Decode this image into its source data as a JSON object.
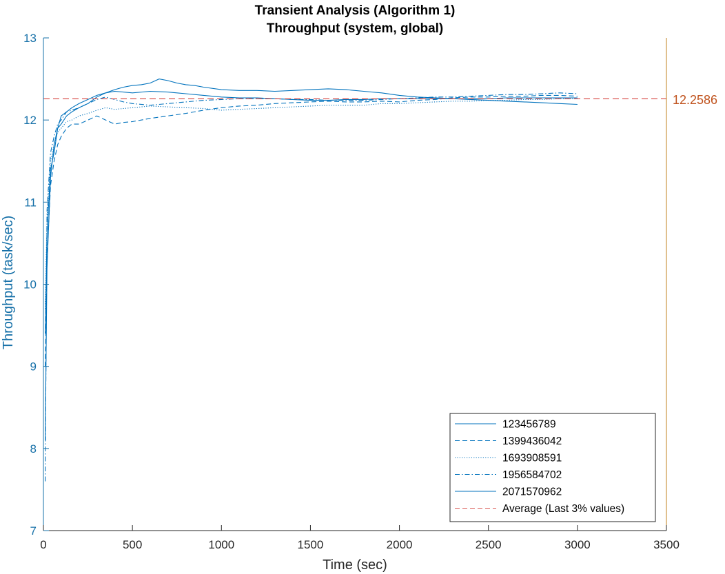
{
  "chart_data": {
    "type": "line",
    "title": "Transient Analysis (Algorithm 1)",
    "subtitle": "Throughput (system, global)",
    "xlabel": "Time (sec)",
    "ylabel": "Throughput (task/sec)",
    "xlim": [
      0,
      3500
    ],
    "ylim": [
      7,
      13
    ],
    "x_ticks": [
      0,
      500,
      1000,
      1500,
      2000,
      2500,
      3000,
      3500
    ],
    "y_ticks": [
      7,
      8,
      9,
      10,
      11,
      12,
      13
    ],
    "grid": false,
    "legend_position": "bottom-right",
    "series": [
      {
        "name": "123456789",
        "line_style": "solid",
        "color": "#0072BD",
        "points": [
          [
            10,
            9.4
          ],
          [
            20,
            10.6
          ],
          [
            40,
            11.4
          ],
          [
            60,
            11.6
          ],
          [
            80,
            11.9
          ],
          [
            100,
            11.95
          ],
          [
            130,
            12.05
          ],
          [
            160,
            12.1
          ],
          [
            200,
            12.15
          ],
          [
            250,
            12.2
          ],
          [
            300,
            12.28
          ],
          [
            350,
            12.33
          ],
          [
            400,
            12.37
          ],
          [
            450,
            12.4
          ],
          [
            500,
            12.42
          ],
          [
            550,
            12.43
          ],
          [
            600,
            12.45
          ],
          [
            650,
            12.5
          ],
          [
            700,
            12.48
          ],
          [
            750,
            12.45
          ],
          [
            800,
            12.43
          ],
          [
            850,
            12.42
          ],
          [
            900,
            12.4
          ],
          [
            1000,
            12.37
          ],
          [
            1100,
            12.36
          ],
          [
            1200,
            12.36
          ],
          [
            1300,
            12.35
          ],
          [
            1400,
            12.36
          ],
          [
            1500,
            12.37
          ],
          [
            1600,
            12.38
          ],
          [
            1700,
            12.37
          ],
          [
            1800,
            12.35
          ],
          [
            1900,
            12.33
          ],
          [
            2000,
            12.3
          ],
          [
            2100,
            12.28
          ],
          [
            2200,
            12.27
          ],
          [
            2300,
            12.26
          ],
          [
            2400,
            12.25
          ],
          [
            2500,
            12.24
          ],
          [
            2600,
            12.23
          ],
          [
            2700,
            12.22
          ],
          [
            2800,
            12.21
          ],
          [
            2900,
            12.2
          ],
          [
            3000,
            12.19
          ]
        ]
      },
      {
        "name": "1399436042",
        "line_style": "dashed",
        "color": "#0072BD",
        "points": [
          [
            10,
            9.0
          ],
          [
            20,
            10.3
          ],
          [
            40,
            11.2
          ],
          [
            60,
            11.5
          ],
          [
            80,
            11.7
          ],
          [
            100,
            11.8
          ],
          [
            130,
            11.9
          ],
          [
            160,
            11.95
          ],
          [
            200,
            11.95
          ],
          [
            250,
            12.0
          ],
          [
            300,
            12.05
          ],
          [
            350,
            12.0
          ],
          [
            400,
            11.95
          ],
          [
            450,
            11.97
          ],
          [
            500,
            11.98
          ],
          [
            600,
            12.02
          ],
          [
            700,
            12.05
          ],
          [
            800,
            12.08
          ],
          [
            900,
            12.12
          ],
          [
            1000,
            12.15
          ],
          [
            1100,
            12.17
          ],
          [
            1200,
            12.18
          ],
          [
            1300,
            12.2
          ],
          [
            1400,
            12.21
          ],
          [
            1500,
            12.22
          ],
          [
            1600,
            12.23
          ],
          [
            1700,
            12.22
          ],
          [
            1800,
            12.22
          ],
          [
            1900,
            12.23
          ],
          [
            2000,
            12.22
          ],
          [
            2100,
            12.24
          ],
          [
            2200,
            12.25
          ],
          [
            2300,
            12.27
          ],
          [
            2400,
            12.28
          ],
          [
            2500,
            12.28
          ],
          [
            2600,
            12.29
          ],
          [
            2700,
            12.29
          ],
          [
            2800,
            12.3
          ],
          [
            2900,
            12.3
          ],
          [
            3000,
            12.29
          ]
        ]
      },
      {
        "name": "1693908591",
        "line_style": "dotted",
        "color": "#0072BD",
        "points": [
          [
            10,
            9.7
          ],
          [
            20,
            10.8
          ],
          [
            40,
            11.5
          ],
          [
            60,
            11.7
          ],
          [
            80,
            11.85
          ],
          [
            100,
            11.9
          ],
          [
            130,
            11.98
          ],
          [
            160,
            12.0
          ],
          [
            200,
            12.05
          ],
          [
            250,
            12.08
          ],
          [
            300,
            12.12
          ],
          [
            350,
            12.15
          ],
          [
            400,
            12.13
          ],
          [
            450,
            12.14
          ],
          [
            500,
            12.15
          ],
          [
            600,
            12.17
          ],
          [
            700,
            12.16
          ],
          [
            800,
            12.15
          ],
          [
            900,
            12.14
          ],
          [
            1000,
            12.12
          ],
          [
            1100,
            12.13
          ],
          [
            1200,
            12.14
          ],
          [
            1300,
            12.15
          ],
          [
            1400,
            12.16
          ],
          [
            1500,
            12.17
          ],
          [
            1600,
            12.18
          ],
          [
            1700,
            12.18
          ],
          [
            1800,
            12.18
          ],
          [
            1900,
            12.2
          ],
          [
            2000,
            12.2
          ],
          [
            2100,
            12.21
          ],
          [
            2200,
            12.22
          ],
          [
            2300,
            12.23
          ],
          [
            2400,
            12.23
          ],
          [
            2500,
            12.24
          ],
          [
            2600,
            12.24
          ],
          [
            2700,
            12.25
          ],
          [
            2800,
            12.25
          ],
          [
            2900,
            12.26
          ],
          [
            3000,
            12.26
          ]
        ]
      },
      {
        "name": "1956584702",
        "line_style": "dash-dot",
        "color": "#0072BD",
        "points": [
          [
            10,
            7.6
          ],
          [
            20,
            10.9
          ],
          [
            40,
            11.6
          ],
          [
            60,
            11.8
          ],
          [
            80,
            11.95
          ],
          [
            100,
            12.0
          ],
          [
            130,
            12.1
          ],
          [
            160,
            12.12
          ],
          [
            200,
            12.15
          ],
          [
            250,
            12.2
          ],
          [
            300,
            12.25
          ],
          [
            350,
            12.28
          ],
          [
            400,
            12.25
          ],
          [
            450,
            12.22
          ],
          [
            500,
            12.2
          ],
          [
            600,
            12.18
          ],
          [
            700,
            12.2
          ],
          [
            800,
            12.22
          ],
          [
            900,
            12.24
          ],
          [
            1000,
            12.25
          ],
          [
            1100,
            12.26
          ],
          [
            1200,
            12.26
          ],
          [
            1300,
            12.26
          ],
          [
            1400,
            12.25
          ],
          [
            1500,
            12.25
          ],
          [
            1600,
            12.24
          ],
          [
            1700,
            12.24
          ],
          [
            1800,
            12.24
          ],
          [
            1900,
            12.25
          ],
          [
            2000,
            12.26
          ],
          [
            2100,
            12.27
          ],
          [
            2200,
            12.28
          ],
          [
            2300,
            12.28
          ],
          [
            2400,
            12.29
          ],
          [
            2500,
            12.3
          ],
          [
            2600,
            12.31
          ],
          [
            2700,
            12.31
          ],
          [
            2800,
            12.32
          ],
          [
            2900,
            12.33
          ],
          [
            3000,
            12.32
          ]
        ]
      },
      {
        "name": "2071570962",
        "line_style": "solid",
        "color": "#0072BD",
        "points": [
          [
            10,
            8.1
          ],
          [
            20,
            10.2
          ],
          [
            40,
            11.3
          ],
          [
            60,
            11.7
          ],
          [
            80,
            11.9
          ],
          [
            100,
            12.05
          ],
          [
            130,
            12.1
          ],
          [
            160,
            12.15
          ],
          [
            200,
            12.2
          ],
          [
            250,
            12.25
          ],
          [
            300,
            12.3
          ],
          [
            350,
            12.33
          ],
          [
            400,
            12.35
          ],
          [
            450,
            12.34
          ],
          [
            500,
            12.33
          ],
          [
            600,
            12.35
          ],
          [
            700,
            12.34
          ],
          [
            800,
            12.32
          ],
          [
            900,
            12.3
          ],
          [
            1000,
            12.28
          ],
          [
            1100,
            12.27
          ],
          [
            1200,
            12.27
          ],
          [
            1300,
            12.26
          ],
          [
            1400,
            12.25
          ],
          [
            1500,
            12.24
          ],
          [
            1600,
            12.24
          ],
          [
            1700,
            12.25
          ],
          [
            1800,
            12.25
          ],
          [
            1900,
            12.26
          ],
          [
            2000,
            12.26
          ],
          [
            2100,
            12.26
          ],
          [
            2200,
            12.26
          ],
          [
            2300,
            12.26
          ],
          [
            2400,
            12.26
          ],
          [
            2500,
            12.26
          ],
          [
            2600,
            12.27
          ],
          [
            2700,
            12.27
          ],
          [
            2800,
            12.27
          ],
          [
            2900,
            12.27
          ],
          [
            3000,
            12.27
          ]
        ]
      },
      {
        "name": "Average (Last 3% values)",
        "line_style": "dashed",
        "color": "#D9534F",
        "value": 12.2586
      }
    ],
    "reference_line": {
      "value": 12.2586,
      "label": "12.2586",
      "color": "#C0531E",
      "right_axis_color": "#C0801E"
    },
    "colors": {
      "series": "#0072BD",
      "y_axis": "#1670A8",
      "average": "#D9534F",
      "x_axis": "#262626"
    }
  }
}
